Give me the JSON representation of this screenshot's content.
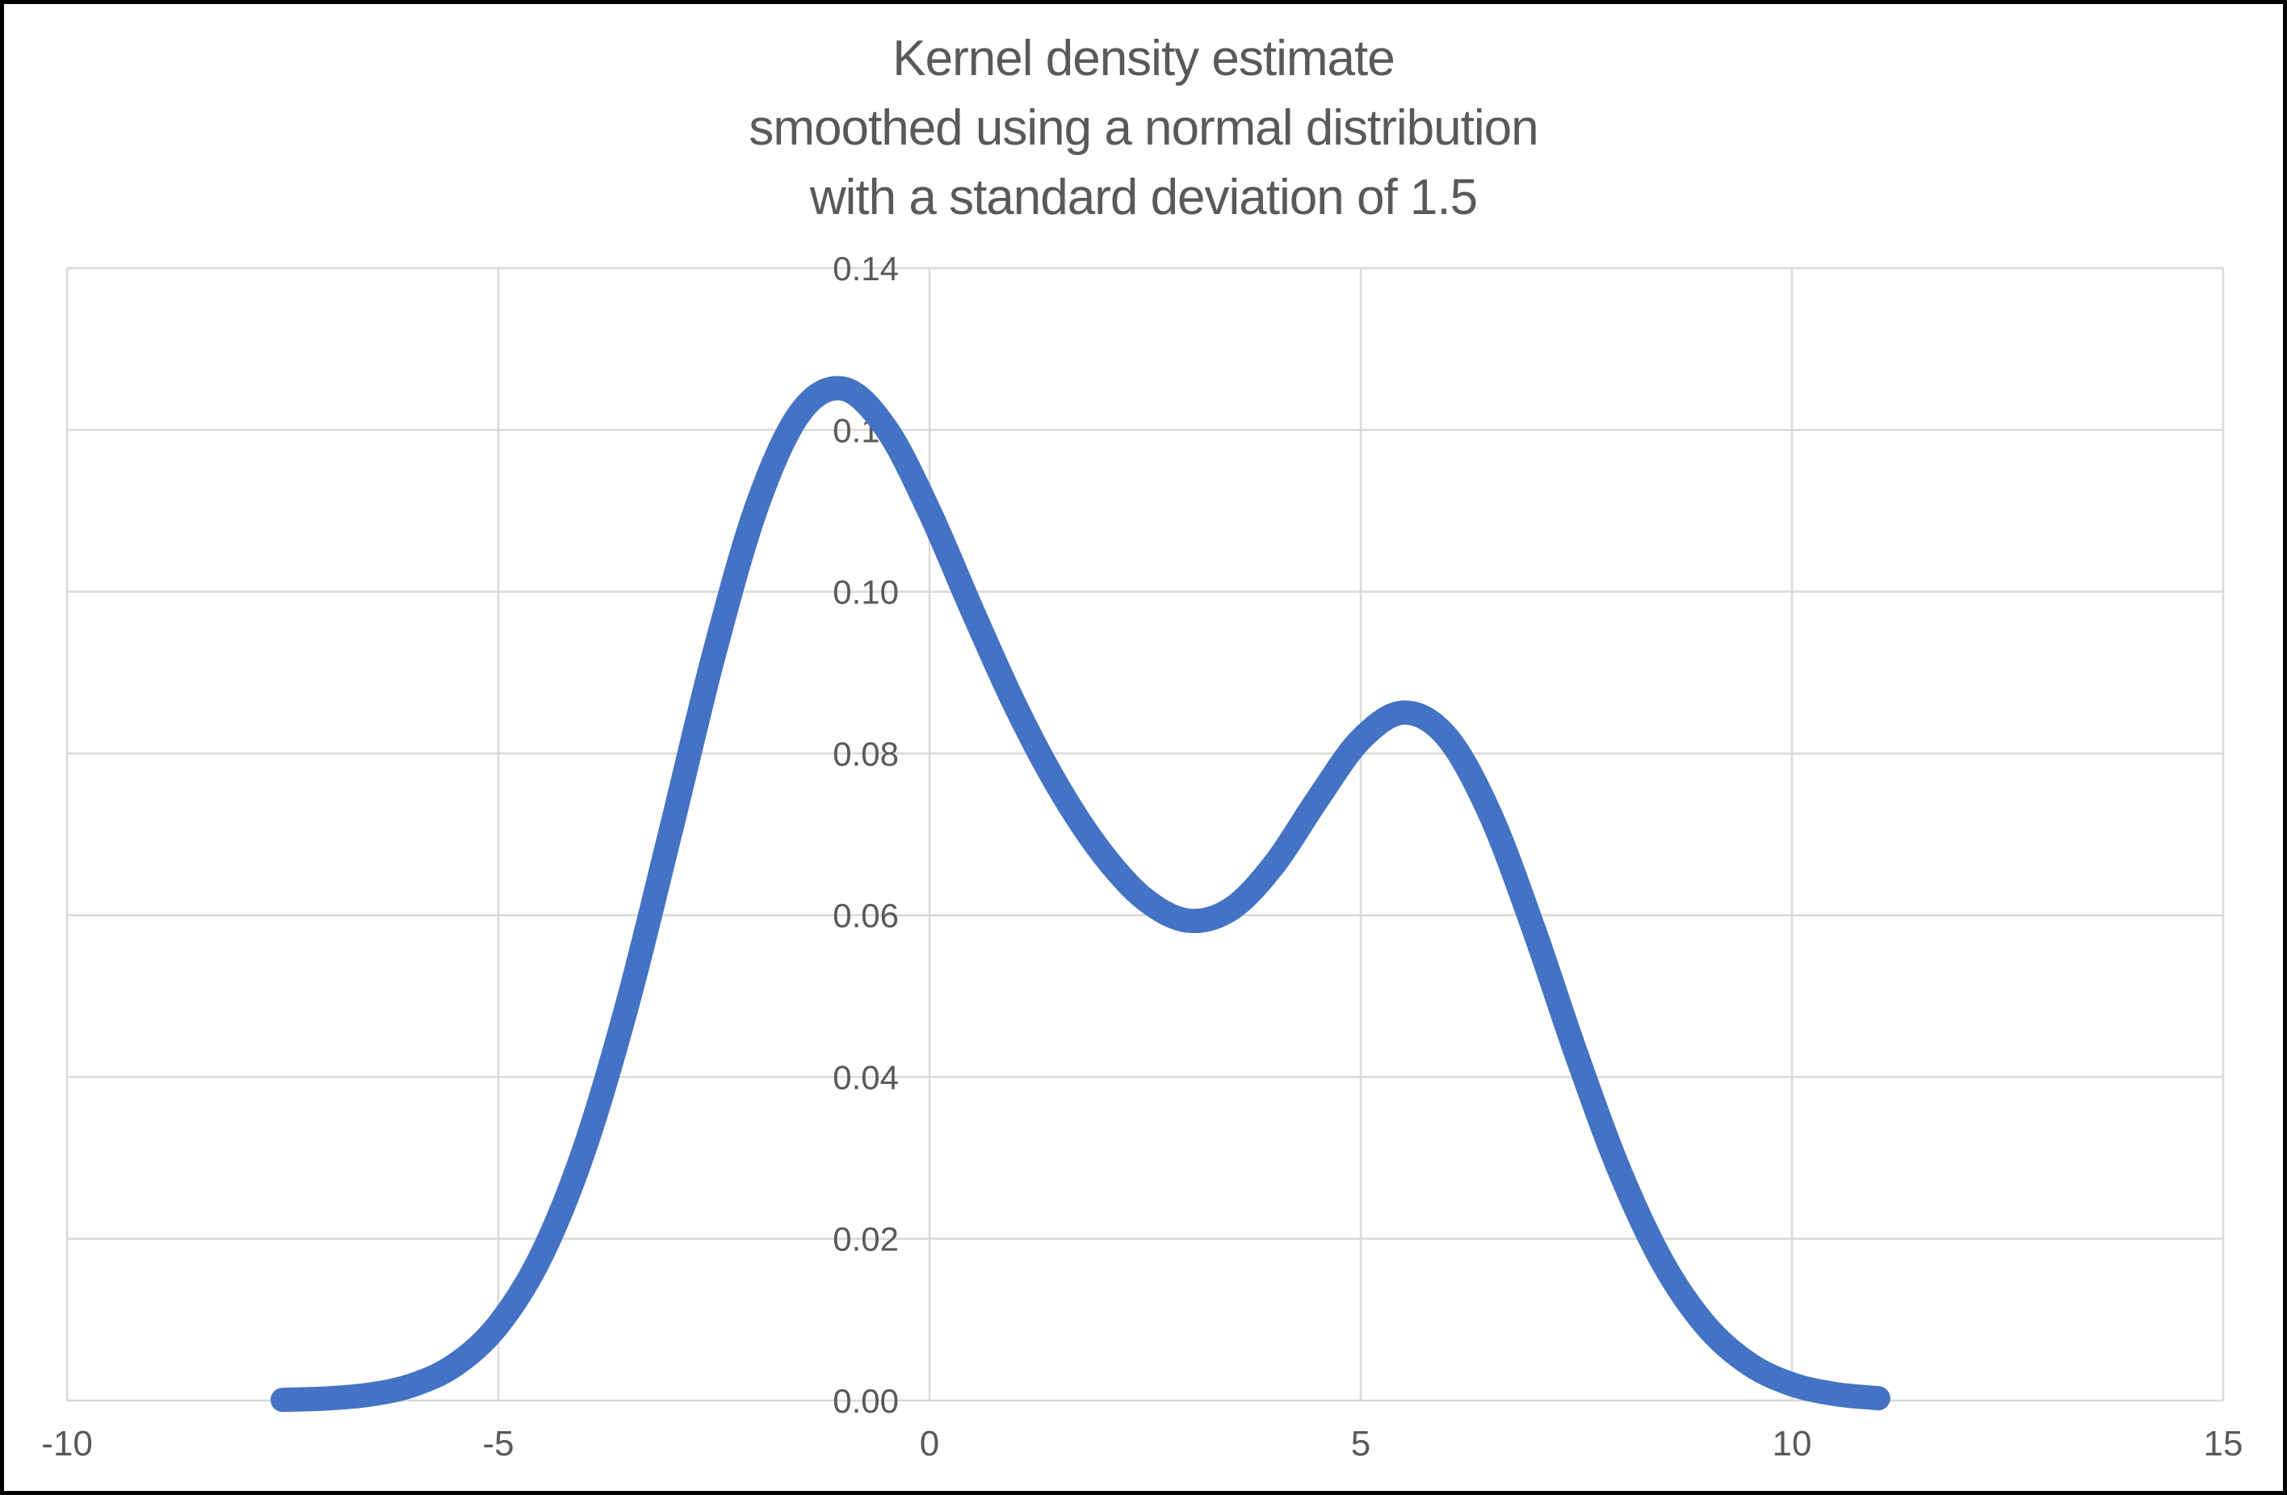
{
  "chart_data": {
    "type": "line",
    "title": "Kernel density estimate smoothed using a normal distribution with a standard deviation of 1.5",
    "title_lines": [
      "Kernel density estimate",
      "smoothed using a normal distribution",
      "with a standard deviation of 1.5"
    ],
    "xlabel": "",
    "ylabel": "",
    "xlim": [
      -10,
      15
    ],
    "ylim": [
      0,
      0.14
    ],
    "grid": true,
    "legend_position": "none",
    "x_ticks": [
      {
        "value": -10,
        "label": "-10"
      },
      {
        "value": -5,
        "label": "-5"
      },
      {
        "value": 0,
        "label": "0"
      },
      {
        "value": 5,
        "label": "5"
      },
      {
        "value": 10,
        "label": "10"
      },
      {
        "value": 15,
        "label": "15"
      }
    ],
    "y_ticks": [
      {
        "value": 0.0,
        "label": "0.00"
      },
      {
        "value": 0.02,
        "label": "0.02"
      },
      {
        "value": 0.04,
        "label": "0.04"
      },
      {
        "value": 0.06,
        "label": "0.06"
      },
      {
        "value": 0.08,
        "label": "0.08"
      },
      {
        "value": 0.1,
        "label": "0.10"
      },
      {
        "value": 0.12,
        "label": "0.12"
      },
      {
        "value": 0.14,
        "label": "0.14"
      }
    ],
    "series": [
      {
        "name": "Kernel density estimate (normal kernel, sd = 1.5)",
        "color": "#4472C4",
        "x": [
          -7.5,
          -7.0,
          -6.5,
          -6.0,
          -5.5,
          -5.0,
          -4.5,
          -4.0,
          -3.5,
          -3.0,
          -2.5,
          -2.0,
          -1.5,
          -1.0,
          -0.5,
          0.0,
          0.5,
          1.0,
          1.5,
          2.0,
          2.5,
          3.0,
          3.5,
          4.0,
          4.5,
          5.0,
          5.5,
          6.0,
          6.5,
          7.0,
          7.5,
          8.0,
          8.5,
          9.0,
          9.5,
          10.0,
          10.5,
          11.0
        ],
        "y": [
          8e-05,
          0.00025,
          0.00072,
          0.00188,
          0.00441,
          0.00936,
          0.01794,
          0.03115,
          0.0491,
          0.07043,
          0.0922,
          0.1106,
          0.12213,
          0.1251,
          0.12015,
          0.10989,
          0.09758,
          0.08579,
          0.07573,
          0.06768,
          0.06194,
          0.05933,
          0.06079,
          0.06633,
          0.07435,
          0.08173,
          0.08505,
          0.08203,
          0.07252,
          0.05846,
          0.04281,
          0.02843,
          0.01708,
          0.00928,
          0.00454,
          0.002,
          0.0008,
          0.00028
        ]
      }
    ],
    "annotations": {
      "peak_1": {
        "x": -1.0,
        "y": 0.125
      },
      "valley": {
        "x": 3.0,
        "y": 0.059
      },
      "peak_2": {
        "x": 5.5,
        "y": 0.085
      }
    },
    "colors": {
      "line": "#4472C4",
      "gridline": "#D9D9D9",
      "tick_text": "#595959",
      "title_text": "#595959",
      "background": "#FFFFFF",
      "frame_border": "#000000"
    }
  }
}
